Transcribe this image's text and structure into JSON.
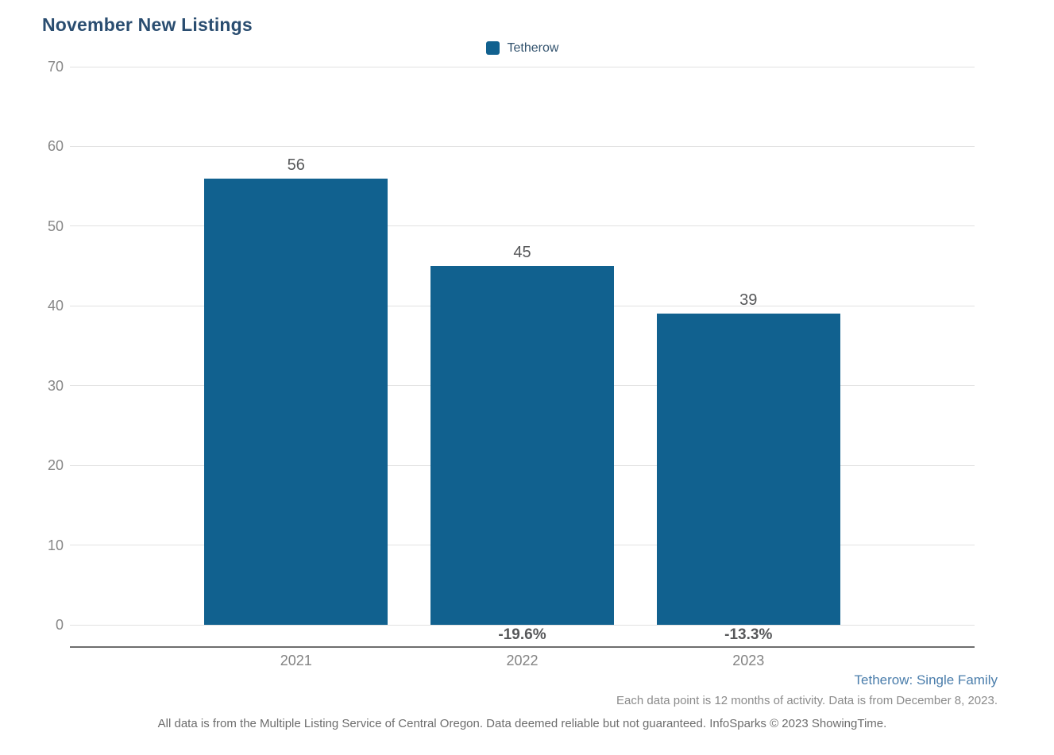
{
  "title": "November New Listings",
  "legend": {
    "label": "Tetherow",
    "swatch_color": "#11618f"
  },
  "chart_data": {
    "type": "bar",
    "categories": [
      "2021",
      "2022",
      "2023"
    ],
    "series": [
      {
        "name": "Tetherow",
        "color": "#11618f",
        "values": [
          56,
          45,
          39
        ]
      }
    ],
    "value_labels": [
      "56",
      "45",
      "39"
    ],
    "pct_change_labels": [
      "",
      "-19.6%",
      "-13.3%"
    ],
    "title": "November New Listings",
    "xlabel": "",
    "ylabel": "",
    "ylim": [
      0,
      70
    ],
    "yticks": [
      0,
      10,
      20,
      30,
      40,
      50,
      60,
      70
    ],
    "grid": "horizontal",
    "legend_position": "top-center"
  },
  "colors": {
    "bar": "#11618f",
    "title_text": "#2a4d70",
    "grid_line": "#e2e2e2",
    "axis_line": "#6e6e6e",
    "value_label": "#57585a",
    "tick_label": "#878787",
    "footer_link": "#4a7dab",
    "footer_note": "#8b8b8b",
    "footer_disclaimer": "#6d6d6d"
  },
  "footer": {
    "series_note": "Tetherow: Single Family",
    "data_note": "Each data point is 12 months of activity. Data is from December 8, 2023.",
    "disclaimer": "All data is from the Multiple Listing Service of Central Oregon. Data deemed reliable but not guaranteed. InfoSparks © 2023 ShowingTime."
  }
}
